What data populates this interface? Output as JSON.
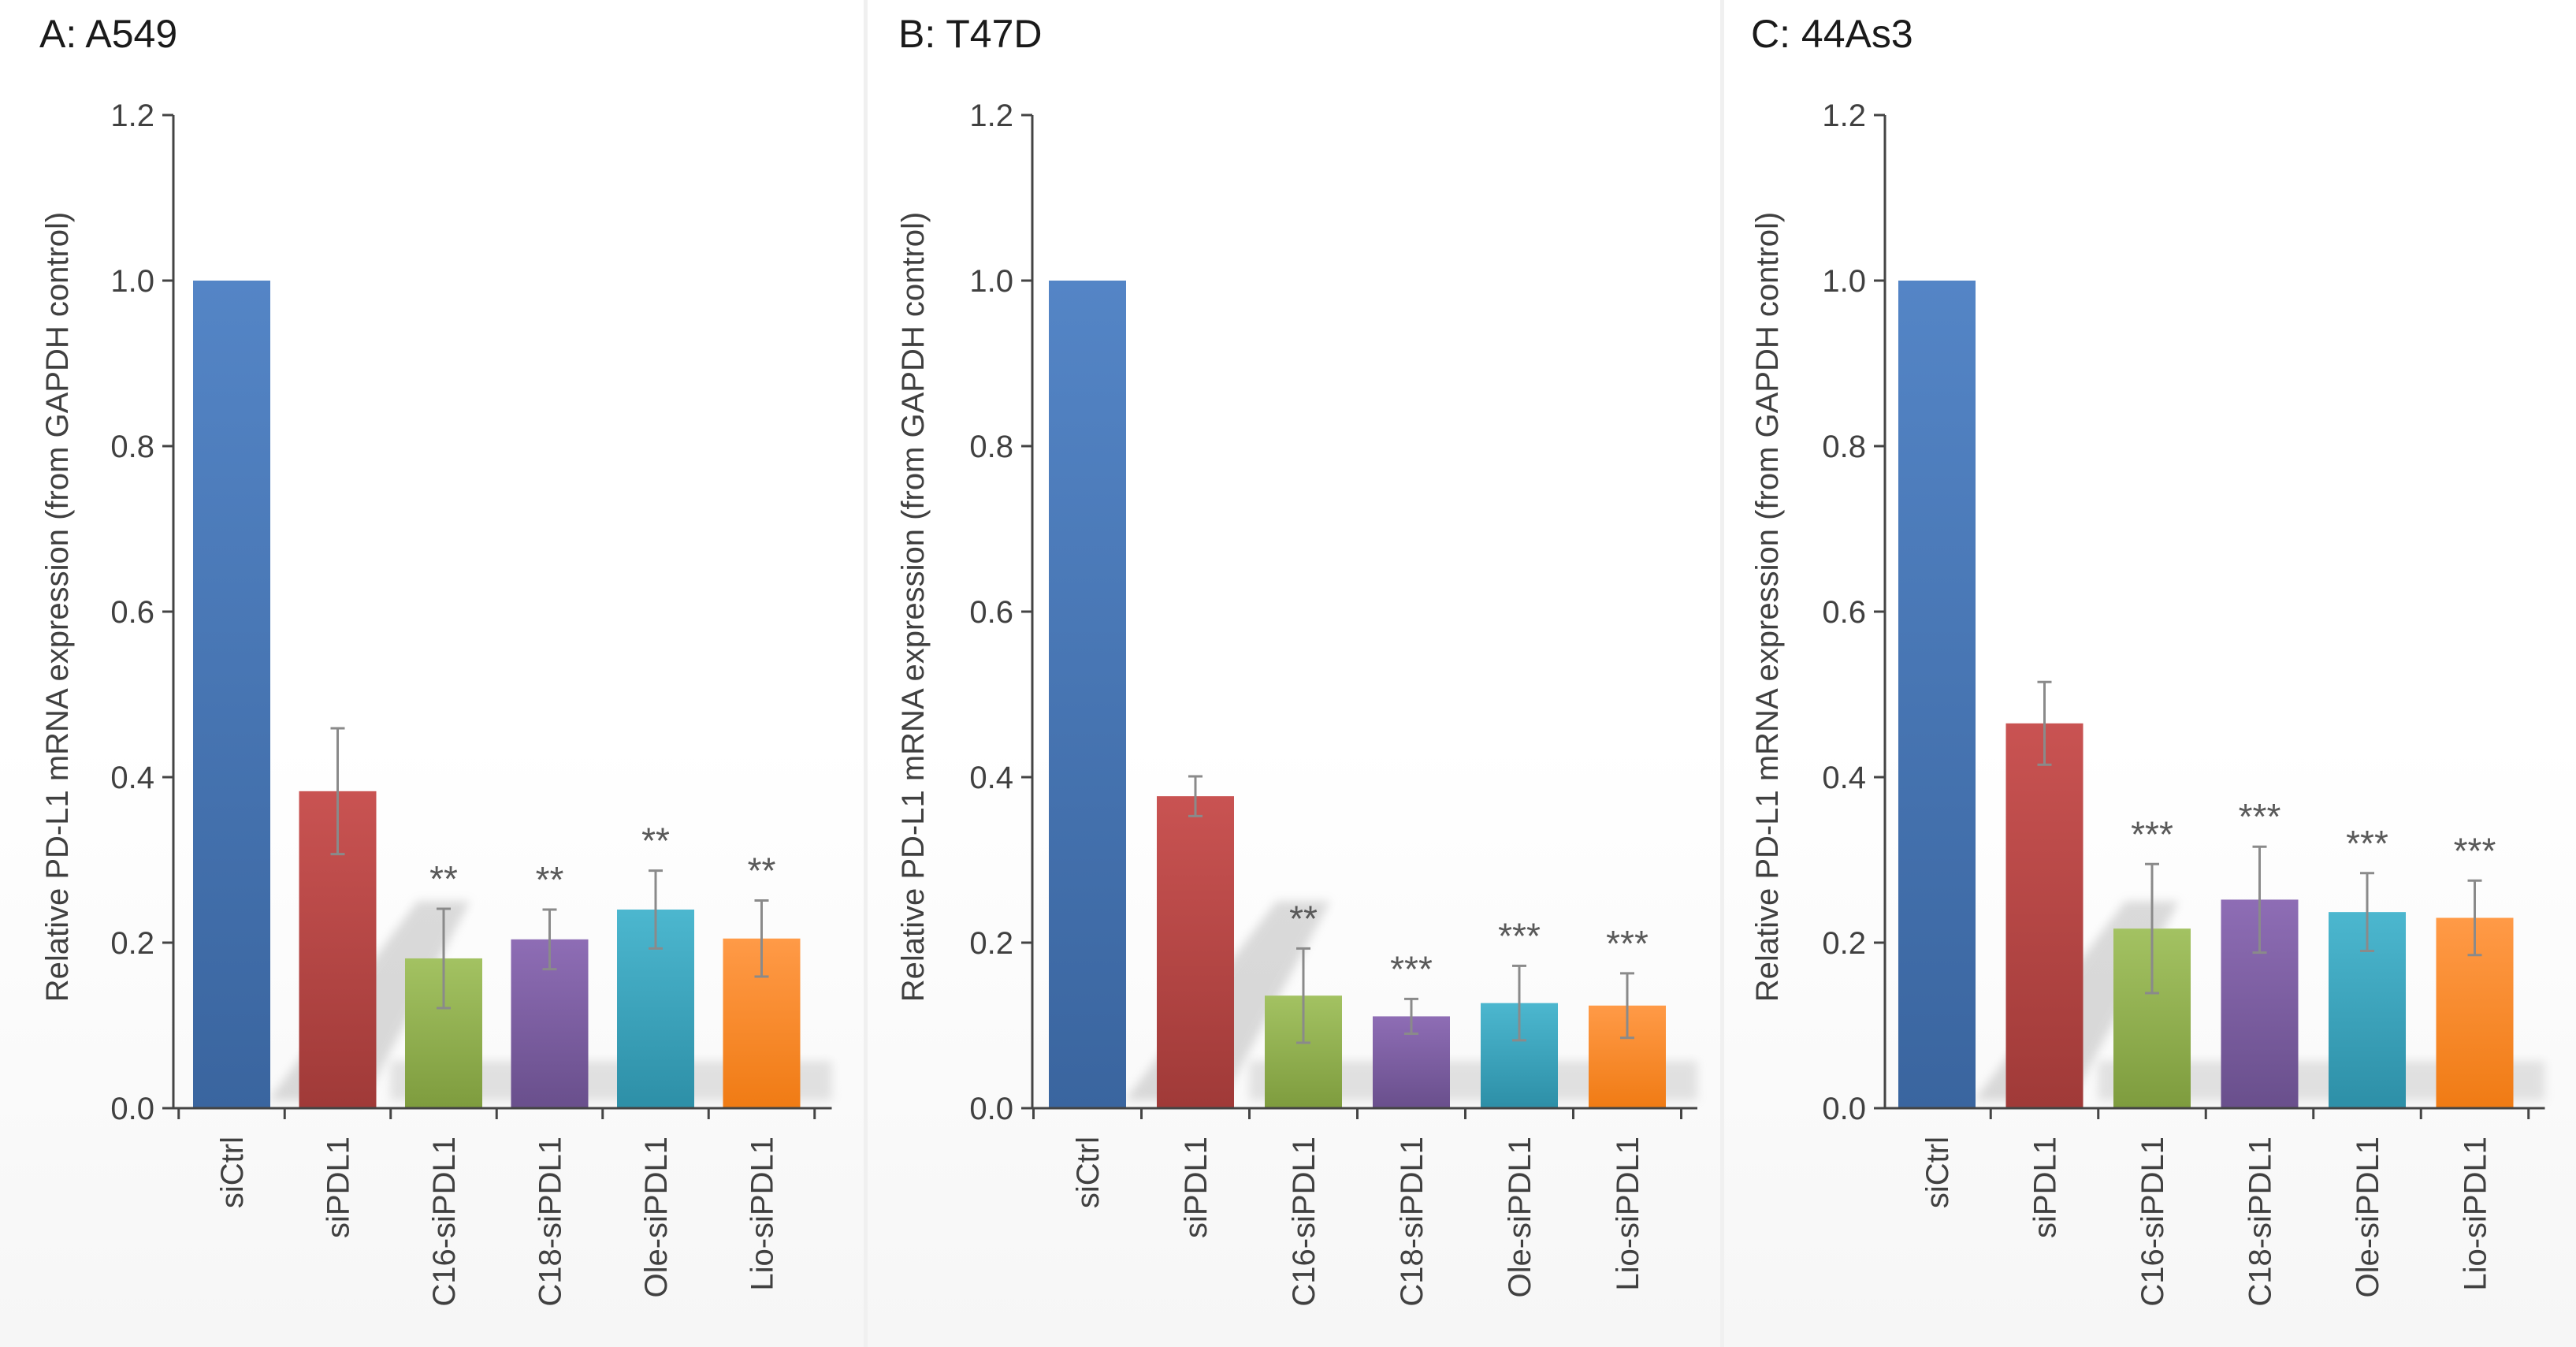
{
  "colors": {
    "siCtrl": [
      "#5485c6",
      "#3a659f"
    ],
    "siPDL1": [
      "#c95352",
      "#a03a38"
    ],
    "C16-siPDL1": [
      "#a3c262",
      "#7e9c3e"
    ],
    "C18-siPDL1": [
      "#8e6db5",
      "#694f8c"
    ],
    "Ole-siPDL1": [
      "#4cb7cf",
      "#2d8fa7"
    ],
    "Lio-siPDL1": [
      "#ff9a47",
      "#f07b14"
    ],
    "axis": "#444444",
    "text": "#404040",
    "title": "#1a1a1a",
    "error": "#8a8a8a",
    "star": "#595959"
  },
  "chart_data": [
    {
      "type": "bar",
      "title": "A: A549",
      "xlabel": "",
      "ylabel": "Relative PD-L1 mRNA expression  (from GAPDH control)",
      "ylim": [
        0,
        1.2
      ],
      "yticks": [
        "0.0",
        "0.2",
        "0.4",
        "0.6",
        "0.8",
        "1.0",
        "1.2"
      ],
      "categories": [
        "siCtrl",
        "siPDL1",
        "C16-siPDL1",
        "C18-siPDL1",
        "Ole-siPDL1",
        "Lio-siPDL1"
      ],
      "values": [
        1.0,
        0.383,
        0.181,
        0.204,
        0.24,
        0.205
      ],
      "errors": [
        0.0,
        0.076,
        0.06,
        0.036,
        0.047,
        0.046
      ],
      "significance": [
        "",
        "",
        "**",
        "**",
        "**",
        "**"
      ]
    },
    {
      "type": "bar",
      "title": "B: T47D",
      "xlabel": "",
      "ylabel": "Relative PD-L1 mRNA expression  (from GAPDH control)",
      "ylim": [
        0,
        1.2
      ],
      "yticks": [
        "0.0",
        "0.2",
        "0.4",
        "0.6",
        "0.8",
        "1.0",
        "1.2"
      ],
      "categories": [
        "siCtrl",
        "siPDL1",
        "C16-siPDL1",
        "C18-siPDL1",
        "Ole-siPDL1",
        "Lio-siPDL1"
      ],
      "values": [
        1.0,
        0.377,
        0.136,
        0.111,
        0.127,
        0.124
      ],
      "errors": [
        0.0,
        0.024,
        0.057,
        0.021,
        0.045,
        0.039
      ],
      "significance": [
        "",
        "",
        "**",
        "***",
        "***",
        "***"
      ]
    },
    {
      "type": "bar",
      "title": "C: 44As3",
      "xlabel": "",
      "ylabel": "Relative PD-L1 mRNA expression  (from GAPDH control)",
      "ylim": [
        0,
        1.2
      ],
      "yticks": [
        "0.0",
        "0.2",
        "0.4",
        "0.6",
        "0.8",
        "1.0",
        "1.2"
      ],
      "categories": [
        "siCtrl",
        "siPDL1",
        "C16-siPDL1",
        "C18-siPDL1",
        "Ole-siPDL1",
        "Lio-siPDL1"
      ],
      "values": [
        1.0,
        0.465,
        0.217,
        0.252,
        0.237,
        0.23
      ],
      "errors": [
        0.0,
        0.05,
        0.078,
        0.064,
        0.047,
        0.045
      ],
      "significance": [
        "",
        "",
        "***",
        "***",
        "***",
        "***"
      ]
    }
  ]
}
